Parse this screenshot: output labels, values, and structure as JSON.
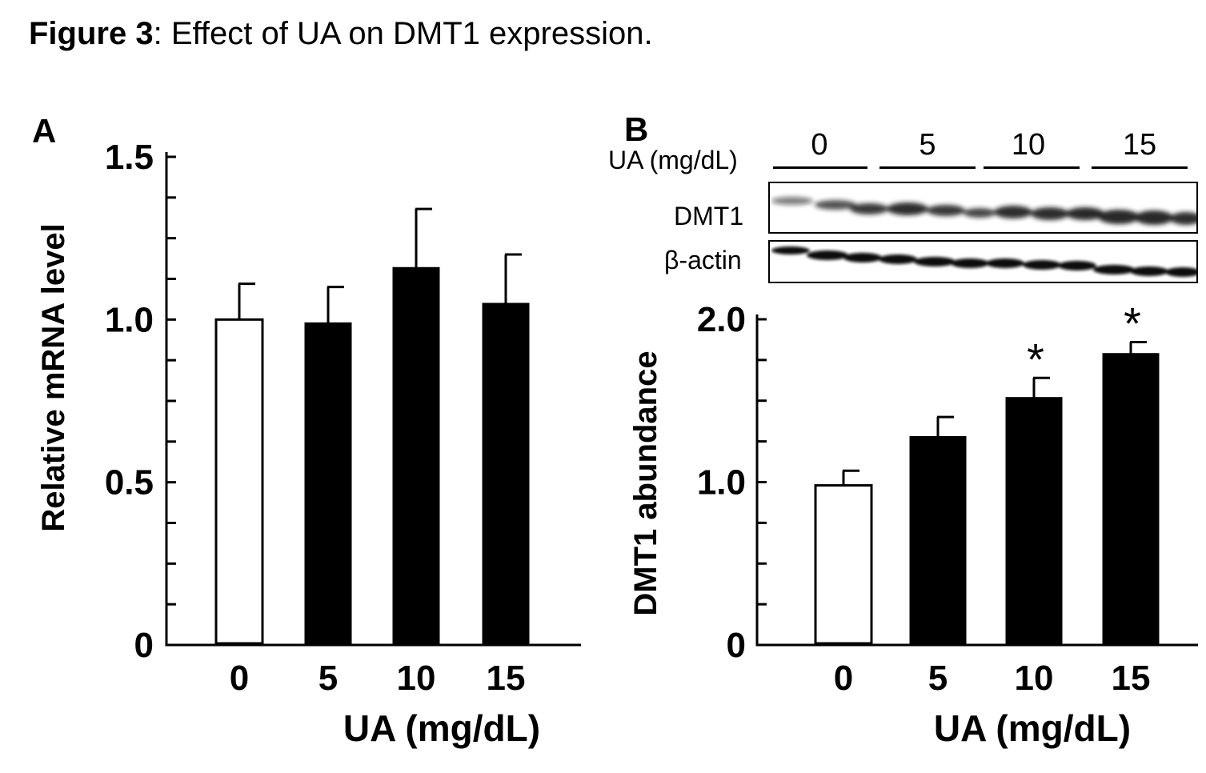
{
  "figure": {
    "label": "Figure 3",
    "caption": ": Effect of UA on DMT1 expression."
  },
  "blot": {
    "treatment_label": "UA (mg/dL)",
    "lanes": [
      "0",
      "5",
      "10",
      "15"
    ],
    "rows": [
      "DMT1",
      "β-actin"
    ]
  },
  "chart_data": [
    {
      "panel": "A",
      "type": "bar",
      "categories": [
        "0",
        "5",
        "10",
        "15"
      ],
      "values": [
        1.0,
        0.99,
        1.16,
        1.05
      ],
      "errors": [
        0.11,
        0.11,
        0.18,
        0.15
      ],
      "fill": [
        "#ffffff",
        "#000000",
        "#000000",
        "#000000"
      ],
      "significance": [
        "",
        "",
        "",
        ""
      ],
      "xlabel": "UA (mg/dL)",
      "ylabel": "Relative mRNA level",
      "ylim": [
        0,
        1.5
      ],
      "yticks": [
        0,
        0.5,
        1.0,
        1.5
      ],
      "ytick_labels": [
        "0",
        "0.5",
        "1.0",
        "1.5"
      ],
      "minor_step": 0.125,
      "grid": false
    },
    {
      "panel": "B",
      "type": "bar",
      "categories": [
        "0",
        "5",
        "10",
        "15"
      ],
      "values": [
        0.98,
        1.28,
        1.52,
        1.79
      ],
      "errors": [
        0.09,
        0.12,
        0.12,
        0.07
      ],
      "fill": [
        "#ffffff",
        "#000000",
        "#000000",
        "#000000"
      ],
      "significance": [
        "",
        "",
        "*",
        "*"
      ],
      "xlabel": "UA (mg/dL)",
      "ylabel": "DMT1 abundance",
      "ylim": [
        0,
        2.0
      ],
      "yticks": [
        0,
        1.0,
        2.0
      ],
      "ytick_labels": [
        "0",
        "1.0",
        "2.0"
      ],
      "minor_step": 0.25,
      "grid": false
    }
  ]
}
